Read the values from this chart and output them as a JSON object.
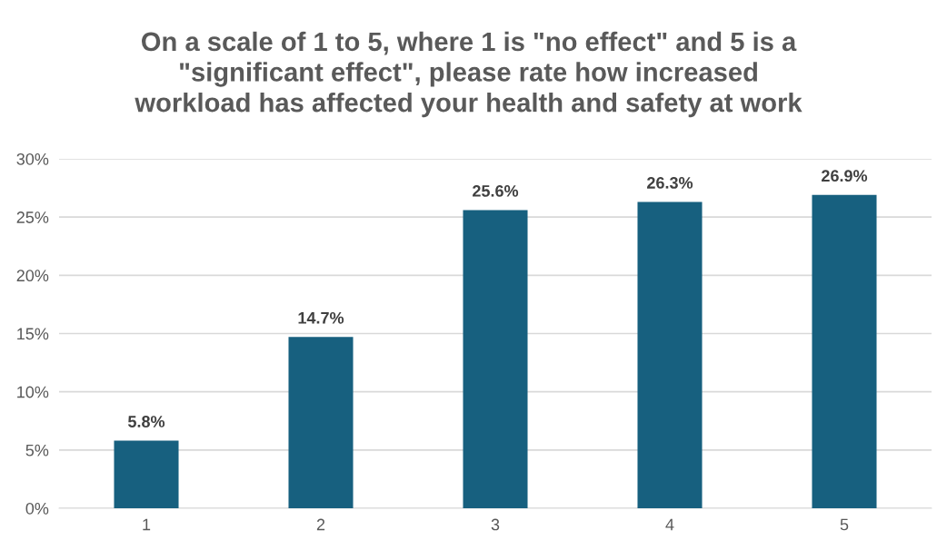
{
  "chart_data": {
    "type": "bar",
    "title": "On a scale of 1 to 5, where 1 is \"no effect\" and 5 is a\n\"significant effect\", please rate how increased\nworkload has affected your health and safety at work",
    "categories": [
      "1",
      "2",
      "3",
      "4",
      "5"
    ],
    "values": [
      5.8,
      14.7,
      25.6,
      26.3,
      26.9
    ],
    "value_labels": [
      "5.8%",
      "14.7%",
      "25.6%",
      "26.3%",
      "26.9%"
    ],
    "color": "#17607f",
    "ylim": [
      0,
      30
    ],
    "yticks": [
      {
        "value": 0,
        "label": "0%"
      },
      {
        "value": 5,
        "label": "5%"
      },
      {
        "value": 10,
        "label": "10%"
      },
      {
        "value": 15,
        "label": "15%"
      },
      {
        "value": 20,
        "label": "20%"
      },
      {
        "value": 25,
        "label": "25%"
      },
      {
        "value": 30,
        "label": "30%"
      }
    ],
    "grid": "y"
  }
}
